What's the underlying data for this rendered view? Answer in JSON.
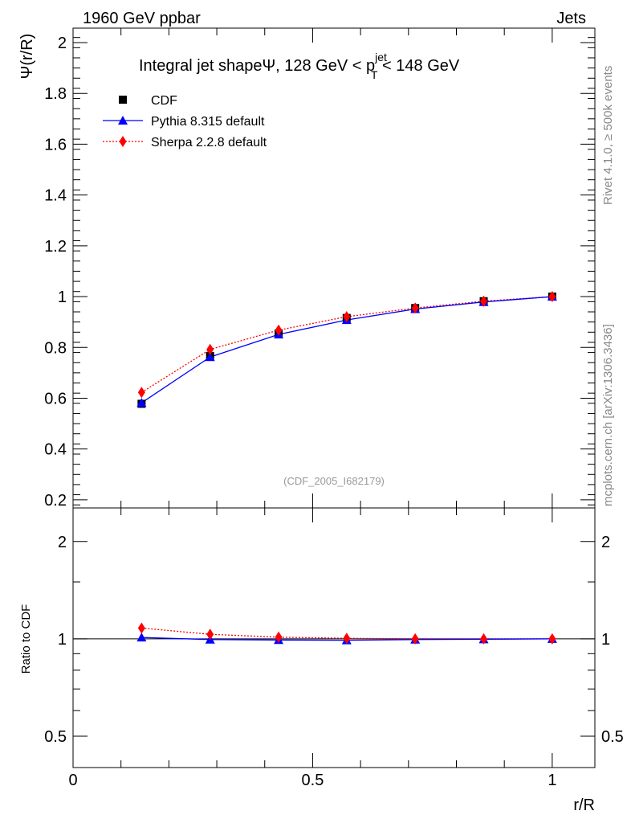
{
  "header": {
    "left": "1960 GeV ppbar",
    "right": "Jets"
  },
  "side_labels": {
    "top": "Rivet 4.1.0, ≥ 500k events",
    "bottom": "mcplots.cern.ch [arXiv:1306.3436]"
  },
  "chart_data": [
    {
      "type": "line",
      "title": "Integral jet shapeΨ, 128 GeV < p",
      "title_sup": "jet",
      "title_sub": "T",
      "title_end": " < 148 GeV",
      "ylabel": "Ψ(r/R)",
      "xlabel": "",
      "watermark": "(CDF_2005_I682179)",
      "xlim": [
        0,
        1.089
      ],
      "ylim": [
        0.168,
        2.057
      ],
      "yticks": [
        0.2,
        0.4,
        0.6,
        0.8,
        1,
        1.2,
        1.4,
        1.6,
        1.8,
        2
      ],
      "ytick_labels": [
        "0.2",
        "0.4",
        "0.6",
        "0.8",
        "1",
        "1.2",
        "1.4",
        "1.6",
        "1.8",
        "2"
      ],
      "legend_position": "top-left",
      "x": [
        0.143,
        0.286,
        0.429,
        0.571,
        0.714,
        0.857,
        1.0
      ],
      "series": [
        {
          "name": "CDF",
          "color": "#000000",
          "marker": "square",
          "values": [
            0.578,
            0.766,
            0.855,
            0.916,
            0.955,
            0.982,
            1.0
          ]
        },
        {
          "name": "Pythia 8.315 default",
          "color": "#0000ff",
          "marker": "triangle",
          "values": [
            0.582,
            0.762,
            0.851,
            0.908,
            0.951,
            0.979,
            1.0
          ]
        },
        {
          "name": "Sherpa 2.2.8 default",
          "color": "#ff0000",
          "marker": "diamond",
          "values": [
            0.623,
            0.792,
            0.868,
            0.921,
            0.955,
            0.982,
            1.0
          ]
        }
      ]
    },
    {
      "type": "line",
      "ylabel": "Ratio to CDF",
      "xlabel": "r/R",
      "yscale": "log",
      "xlim": [
        0,
        1.089
      ],
      "ylim": [
        0.4,
        2.54
      ],
      "yticks": [
        0.5,
        1,
        2
      ],
      "ytick_labels": [
        "0.5",
        "1",
        "2"
      ],
      "xticks": [
        0,
        0.5,
        1
      ],
      "xtick_labels": [
        "0",
        "0.5",
        "1"
      ],
      "x": [
        0.143,
        0.286,
        0.429,
        0.571,
        0.714,
        0.857,
        1.0
      ],
      "series": [
        {
          "name": "Pythia 8.315 default",
          "color": "#0000ff",
          "marker": "triangle",
          "values": [
            1.01,
            0.995,
            0.992,
            0.99,
            0.995,
            0.997,
            1.0
          ]
        },
        {
          "name": "Sherpa 2.2.8 default",
          "color": "#ff0000",
          "marker": "diamond",
          "values": [
            1.08,
            1.033,
            1.012,
            1.004,
            1.0,
            1.0,
            1.0
          ]
        }
      ]
    }
  ]
}
